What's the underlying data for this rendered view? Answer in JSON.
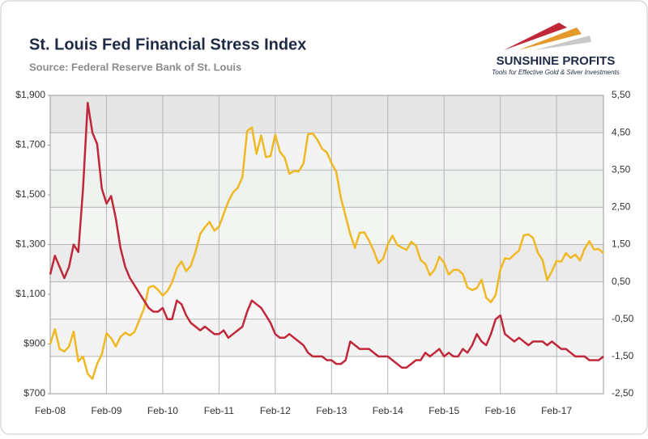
{
  "chart_data": {
    "type": "line",
    "title": "St. Louis Fed Financial Stress Index",
    "subtitle": "Source: Federal Reserve Bank of St. Louis",
    "brand": "SUNSHINE PROFITS",
    "brand_tagline": "Tools for Effective Gold & Silver Investments",
    "grid": true,
    "categories": [
      "Feb-08",
      null,
      null,
      null,
      null,
      null,
      null,
      null,
      null,
      null,
      null,
      null,
      "Feb-09",
      null,
      null,
      null,
      null,
      null,
      null,
      null,
      null,
      null,
      null,
      null,
      "Feb-10",
      null,
      null,
      null,
      null,
      null,
      null,
      null,
      null,
      null,
      null,
      null,
      "Feb-11",
      null,
      null,
      null,
      null,
      null,
      null,
      null,
      null,
      null,
      null,
      null,
      "Feb-12",
      null,
      null,
      null,
      null,
      null,
      null,
      null,
      null,
      null,
      null,
      null,
      "Feb-13",
      null,
      null,
      null,
      null,
      null,
      null,
      null,
      null,
      null,
      null,
      null,
      "Feb-14",
      null,
      null,
      null,
      null,
      null,
      null,
      null,
      null,
      null,
      null,
      null,
      "Feb-15",
      null,
      null,
      null,
      null,
      null,
      null,
      null,
      null,
      null,
      null,
      null,
      "Feb-16",
      null,
      null,
      null,
      null,
      null,
      null,
      null,
      null,
      null,
      null,
      null,
      "Feb-17",
      null,
      null,
      null,
      null,
      null,
      null,
      null,
      null,
      null,
      null
    ],
    "ylim": [
      700,
      1900
    ],
    "yticks": [
      {
        "value": 700,
        "label": "$700"
      },
      {
        "value": 900,
        "label": "$900"
      },
      {
        "value": 1100,
        "label": "$1,100"
      },
      {
        "value": 1300,
        "label": "$1,300"
      },
      {
        "value": 1500,
        "label": "$1,500"
      },
      {
        "value": 1700,
        "label": "$1,700"
      },
      {
        "value": 1900,
        "label": "$1,900"
      }
    ],
    "y2lim": [
      -2.5,
      5.5
    ],
    "y2ticks": [
      {
        "value": -2.5,
        "label": "-2,50"
      },
      {
        "value": -1.5,
        "label": "-1,50"
      },
      {
        "value": -0.5,
        "label": "-0,50"
      },
      {
        "value": 0.5,
        "label": "0,50"
      },
      {
        "value": 1.5,
        "label": "1,50"
      },
      {
        "value": 2.5,
        "label": "2,50"
      },
      {
        "value": 3.5,
        "label": "3,50"
      },
      {
        "value": 4.5,
        "label": "4,50"
      },
      {
        "value": 5.5,
        "label": "5,50"
      }
    ],
    "series": [
      {
        "color": "#f0b823",
        "values": [
          900,
          960,
          880,
          870,
          890,
          950,
          830,
          850,
          780,
          760,
          820,
          858,
          943,
          924,
          890,
          929,
          946,
          934,
          949,
          996,
          1043,
          1127,
          1134,
          1118,
          1095,
          1113,
          1148,
          1205,
          1232,
          1193,
          1215,
          1271,
          1343,
          1370,
          1391,
          1356,
          1372,
          1424,
          1473,
          1510,
          1528,
          1572,
          1756,
          1772,
          1665,
          1739,
          1652,
          1656,
          1742,
          1673,
          1650,
          1585,
          1596,
          1594,
          1626,
          1744,
          1747,
          1721,
          1685,
          1671,
          1627,
          1593,
          1487,
          1414,
          1343,
          1286,
          1347,
          1349,
          1316,
          1275,
          1225,
          1244,
          1300,
          1336,
          1299,
          1288,
          1279,
          1311,
          1296,
          1238,
          1222,
          1176,
          1200,
          1251,
          1227,
          1179,
          1198,
          1199,
          1181,
          1128,
          1117,
          1125,
          1159,
          1086,
          1068,
          1097,
          1199,
          1245,
          1242,
          1260,
          1276,
          1337,
          1341,
          1326,
          1267,
          1238,
          1157,
          1192,
          1234,
          1231,
          1266,
          1246,
          1260,
          1236,
          1283,
          1314,
          1280,
          1282,
          1265
        ]
      },
      {
        "color": "#c0283a",
        "axis": "y2",
        "values": [
          0.7,
          1.2,
          0.9,
          0.6,
          0.9,
          1.5,
          1.3,
          3.0,
          5.3,
          4.5,
          4.2,
          3.0,
          2.6,
          2.8,
          2.2,
          1.4,
          0.9,
          0.6,
          0.4,
          0.2,
          0.0,
          -0.2,
          -0.3,
          -0.3,
          -0.2,
          -0.5,
          -0.5,
          0.0,
          -0.1,
          -0.4,
          -0.6,
          -0.7,
          -0.8,
          -0.7,
          -0.8,
          -0.9,
          -0.9,
          -0.8,
          -1.0,
          -0.9,
          -0.8,
          -0.7,
          -0.3,
          0.0,
          -0.1,
          -0.2,
          -0.4,
          -0.6,
          -0.9,
          -1.0,
          -1.0,
          -0.9,
          -1.0,
          -1.1,
          -1.2,
          -1.4,
          -1.5,
          -1.5,
          -1.5,
          -1.6,
          -1.6,
          -1.7,
          -1.7,
          -1.6,
          -1.1,
          -1.2,
          -1.3,
          -1.3,
          -1.3,
          -1.4,
          -1.5,
          -1.5,
          -1.5,
          -1.6,
          -1.7,
          -1.8,
          -1.8,
          -1.7,
          -1.6,
          -1.6,
          -1.4,
          -1.5,
          -1.4,
          -1.3,
          -1.5,
          -1.4,
          -1.5,
          -1.5,
          -1.3,
          -1.4,
          -1.2,
          -0.9,
          -1.1,
          -1.2,
          -0.9,
          -0.5,
          -0.4,
          -0.9,
          -1.0,
          -1.1,
          -1.0,
          -1.1,
          -1.2,
          -1.1,
          -1.1,
          -1.1,
          -1.2,
          -1.1,
          -1.2,
          -1.3,
          -1.3,
          -1.4,
          -1.5,
          -1.5,
          -1.5,
          -1.6,
          -1.6,
          -1.6,
          -1.5
        ]
      }
    ]
  }
}
